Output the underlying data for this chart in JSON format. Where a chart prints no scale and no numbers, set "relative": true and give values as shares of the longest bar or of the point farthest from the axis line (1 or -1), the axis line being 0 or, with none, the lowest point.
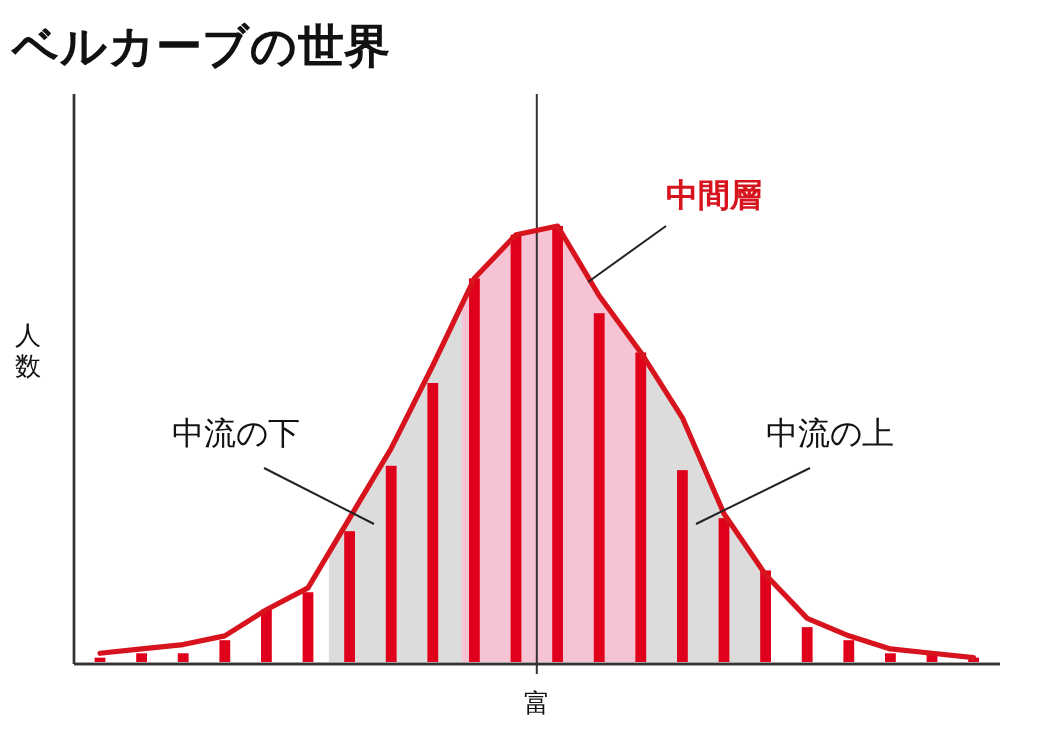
{
  "chart_data": [
    {
      "type": "bar",
      "title": "ベルカーブの世界",
      "xlabel": "富",
      "ylabel": "人数",
      "relative": true,
      "categories": [
        null,
        null,
        null,
        null,
        null,
        null,
        null,
        null,
        null,
        null,
        null,
        null,
        null,
        null,
        null,
        null,
        null,
        null,
        null,
        null,
        null,
        null
      ],
      "series": [
        {
          "color": "#e0001b",
          "values": [
            0.01,
            0.02,
            0.02,
            0.05,
            0.12,
            0.16,
            0.3,
            0.45,
            0.64,
            0.88,
            0.98,
            1.0,
            0.8,
            0.71,
            0.44,
            0.33,
            0.21,
            0.08,
            0.05,
            0.02,
            0.02,
            0.01
          ]
        }
      ]
    },
    {
      "type": "line",
      "relative": true,
      "annotations": [
        "中流の下",
        "中間層",
        "中流の上"
      ],
      "categories": [
        null,
        null,
        null,
        null,
        null,
        null,
        null,
        null,
        null,
        null,
        null,
        null,
        null,
        null,
        null,
        null,
        null,
        null,
        null,
        null,
        null,
        null
      ],
      "series": [
        {
          "color": "#d7141e",
          "values": [
            0.02,
            0.03,
            0.04,
            0.06,
            0.12,
            0.17,
            0.33,
            0.49,
            0.68,
            0.88,
            0.98,
            1.0,
            0.84,
            0.71,
            0.56,
            0.34,
            0.2,
            0.1,
            0.06,
            0.03,
            0.02,
            0.01
          ]
        }
      ]
    }
  ]
}
